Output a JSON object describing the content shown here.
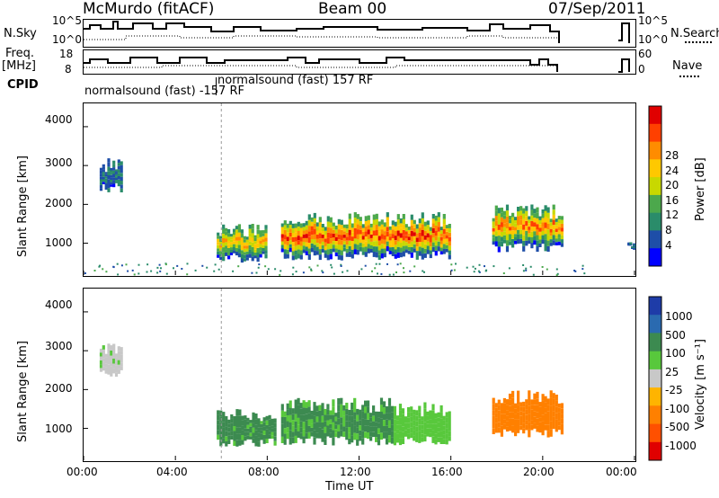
{
  "header": {
    "station": "McMurdo (fitACF)",
    "beam": "Beam 00",
    "date": "07/Sep/2011"
  },
  "top_panels": {
    "nsky_label": "N.Sky",
    "nsky_ticks": [
      "10^5",
      "10^0"
    ],
    "nsky_right_ticks": [
      "10^5",
      "10^0"
    ],
    "nsearch_label": "N.Search",
    "freq_label_1": "Freq.",
    "freq_label_2": "[MHz]",
    "freq_ticks": [
      "18",
      "8"
    ],
    "nave_ticks": [
      "60",
      "0"
    ],
    "nave_label": "Nave",
    "cpid_label": "CPID",
    "cpid_1": "normalsound (fast) -157 RF",
    "cpid_2": "normalsound (fast) 157 RF"
  },
  "axes": {
    "ylabel": "Slant Range [km]",
    "xlabel": "Time UT",
    "y_ticks": [
      "4000",
      "3000",
      "2000",
      "1000"
    ],
    "x_ticks": [
      "00:00",
      "04:00",
      "08:00",
      "12:00",
      "16:00",
      "20:00",
      "00:00"
    ]
  },
  "power_colorbar": {
    "label": "Power [dB]",
    "ticks": [
      "28",
      "24",
      "20",
      "16",
      "12",
      "8",
      "4"
    ],
    "colors": [
      "#e00000",
      "#ff4000",
      "#ff8c00",
      "#ffc800",
      "#c8d800",
      "#4ca84c",
      "#2a8c6a",
      "#1e4ea8",
      "#0000ff"
    ]
  },
  "velocity_colorbar": {
    "label": "Velocity [m s⁻¹]",
    "ticks": [
      "1000",
      "500",
      "100",
      "25",
      "-25",
      "-100",
      "-500",
      "-1000"
    ],
    "colors": [
      "#1e3ca8",
      "#2a6ab0",
      "#3c8a50",
      "#58c83c",
      "#c8c8c8",
      "#ffb400",
      "#ff8000",
      "#ff5000",
      "#e00000"
    ]
  },
  "chart_data": {
    "type": "heatmap",
    "title": "McMurdo (fitACF)",
    "xlabel": "Time UT",
    "ylabel": "Slant Range [km]",
    "xlim_hours": [
      0,
      24
    ],
    "ylim_km": [
      180,
      4600
    ],
    "power_echo_regions": [
      {
        "t0": 5.8,
        "t1": 8.0,
        "r0": 500,
        "r1": 1500,
        "peak_db": 22
      },
      {
        "t0": 8.6,
        "t1": 16.0,
        "r0": 550,
        "r1": 1800,
        "peak_db": 30
      },
      {
        "t0": 17.8,
        "t1": 20.9,
        "r0": 750,
        "r1": 2000,
        "peak_db": 26
      },
      {
        "t0": 0.7,
        "t1": 1.7,
        "r0": 2300,
        "r1": 3200,
        "peak_db": 8
      },
      {
        "t0": 23.7,
        "t1": 24.0,
        "r0": 800,
        "r1": 1200,
        "peak_db": 6
      }
    ],
    "velocity_echo_regions": [
      {
        "t0": 5.8,
        "t1": 8.4,
        "r0": 500,
        "r1": 1500,
        "velocity": 150
      },
      {
        "t0": 8.6,
        "t1": 13.5,
        "r0": 550,
        "r1": 1800,
        "velocity": 120
      },
      {
        "t0": 13.5,
        "t1": 16.0,
        "r0": 550,
        "r1": 1700,
        "velocity": 60
      },
      {
        "t0": 17.8,
        "t1": 20.9,
        "r0": 750,
        "r1": 2000,
        "velocity": -300
      },
      {
        "t0": 0.7,
        "t1": 1.7,
        "r0": 2300,
        "r1": 3200,
        "velocity": 20
      }
    ]
  }
}
